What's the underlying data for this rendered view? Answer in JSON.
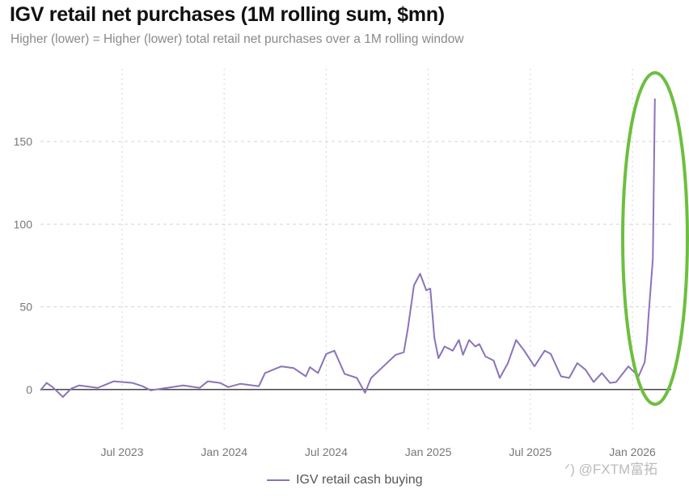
{
  "chart_data": {
    "type": "line",
    "title": "IGV retail net purchases (1M rolling sum, $mn)",
    "subtitle": "Higher (lower) = Higher (lower) total retail net purchases over a 1M rolling window",
    "xlabel": "",
    "ylabel": "",
    "xlim": [
      2023.1,
      2026.19
    ],
    "ylim": [
      -26,
      194
    ],
    "grid": true,
    "legend_position": "bottom-center",
    "x_ticks": [
      {
        "value": 2023.5,
        "label": "Jul 2023"
      },
      {
        "value": 2024.0,
        "label": "Jan 2024"
      },
      {
        "value": 2024.5,
        "label": "Jul 2024"
      },
      {
        "value": 2025.0,
        "label": "Jan 2025"
      },
      {
        "value": 2025.5,
        "label": "Jul 2025"
      },
      {
        "value": 2026.0,
        "label": "Jan 2026"
      }
    ],
    "y_ticks": [
      {
        "value": 0,
        "label": "0"
      },
      {
        "value": 50,
        "label": "50"
      },
      {
        "value": 100,
        "label": "100"
      },
      {
        "value": 150,
        "label": "150"
      }
    ],
    "series": [
      {
        "name": "IGV retail cash buying",
        "color": "#8b74b8",
        "x": [
          2023.1,
          2023.13,
          2023.16,
          2023.21,
          2023.25,
          2023.29,
          2023.38,
          2023.46,
          2023.55,
          2023.6,
          2023.64,
          2023.72,
          2023.8,
          2023.88,
          2023.92,
          2023.98,
          2024.02,
          2024.08,
          2024.17,
          2024.2,
          2024.28,
          2024.34,
          2024.4,
          2024.42,
          2024.46,
          2024.5,
          2024.54,
          2024.59,
          2024.65,
          2024.69,
          2024.72,
          2024.78,
          2024.84,
          2024.88,
          2024.9,
          2024.93,
          2024.96,
          2024.99,
          2025.01,
          2025.03,
          2025.05,
          2025.08,
          2025.12,
          2025.15,
          2025.17,
          2025.2,
          2025.23,
          2025.25,
          2025.28,
          2025.32,
          2025.35,
          2025.39,
          2025.43,
          2025.47,
          2025.52,
          2025.57,
          2025.6,
          2025.65,
          2025.69,
          2025.73,
          2025.77,
          2025.81,
          2025.85,
          2025.89,
          2025.92,
          2025.98,
          2026.03,
          2026.06,
          2026.07,
          2026.08,
          2026.1,
          2026.11
        ],
        "values": [
          -0.5,
          4,
          1.5,
          -4.5,
          0.5,
          2.5,
          1,
          5,
          4,
          2,
          -0.5,
          1,
          2.5,
          1,
          5,
          4,
          1.5,
          3.5,
          2,
          10,
          14,
          13,
          8,
          13.5,
          10,
          21.5,
          23.5,
          9.5,
          7,
          -2,
          7,
          14,
          21,
          22.5,
          37,
          63,
          70,
          60,
          61,
          31,
          19,
          26,
          23.5,
          30,
          21,
          30,
          26,
          27.5,
          20,
          17.5,
          7,
          16,
          30,
          23.5,
          14,
          23.5,
          21.5,
          8,
          7,
          16,
          12,
          4.5,
          10,
          4,
          4.5,
          14,
          8,
          16.5,
          28,
          46,
          79,
          176
        ]
      }
    ],
    "annotation": {
      "shape": "ellipse",
      "color": "#6cbf3f",
      "target": "Jan 2026 spike"
    }
  },
  "watermark": "@FXTM富拓"
}
